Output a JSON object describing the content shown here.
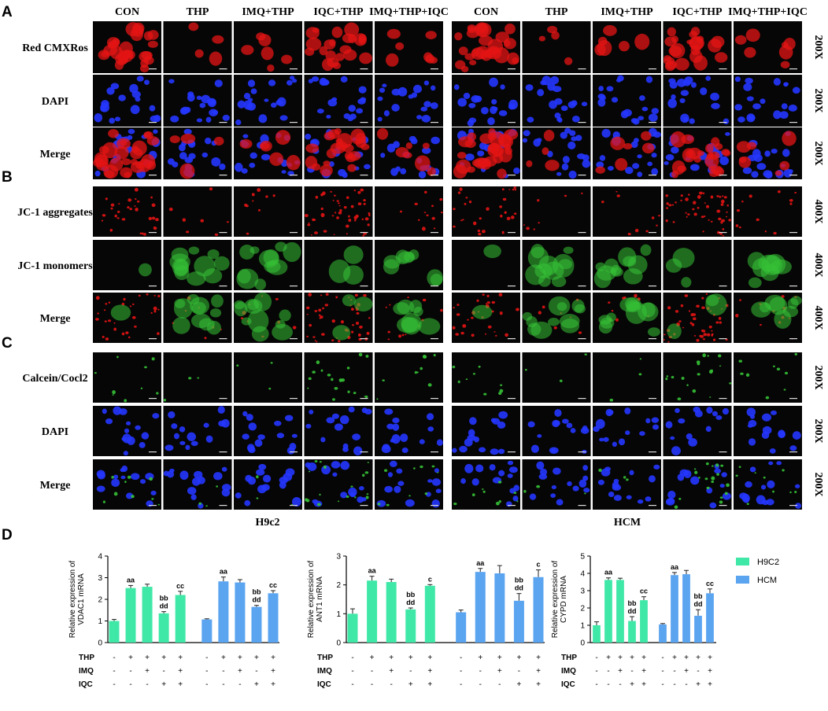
{
  "figure": {
    "panels": [
      {
        "label": "A",
        "rows": [
          {
            "label": "Red CMXRos",
            "magnification": "200X"
          },
          {
            "label": "DAPI",
            "magnification": "200X"
          },
          {
            "label": "Merge",
            "magnification": "200X"
          }
        ]
      },
      {
        "label": "B",
        "rows": [
          {
            "label": "JC-1 aggregates",
            "magnification": "400X"
          },
          {
            "label": "JC-1 monomers",
            "magnification": "400X"
          },
          {
            "label": "Merge",
            "magnification": "400X"
          }
        ]
      },
      {
        "label": "C",
        "rows": [
          {
            "label": "Calcein/Cocl2",
            "magnification": "200X"
          },
          {
            "label": "DAPI",
            "magnification": "200X"
          },
          {
            "label": "Merge",
            "magnification": "200X"
          }
        ]
      }
    ],
    "groups": [
      {
        "name": "H9c2",
        "columns": [
          "CON",
          "THP",
          "IMQ+THP",
          "IQC+THP",
          "IMQ+THP+IQC"
        ]
      },
      {
        "name": "HCM",
        "columns": [
          "CON",
          "THP",
          "IMQ+THP",
          "IQC+THP",
          "IMQ+THP+IQC"
        ]
      }
    ],
    "chart_panel_label": "D"
  },
  "chart_data": [
    {
      "type": "bar",
      "ylabel": [
        "Relative expression of",
        "VDAC1 mRNA"
      ],
      "ylim": [
        0,
        4
      ],
      "yticks": [
        0,
        1,
        2,
        3,
        4
      ],
      "series": [
        {
          "name": "H9C2",
          "color": "#40e8a8",
          "values": [
            1.0,
            2.52,
            2.58,
            1.35,
            2.2
          ],
          "errors": [
            0.07,
            0.12,
            0.12,
            0.08,
            0.17
          ],
          "labels": [
            null,
            [
              "aa"
            ],
            null,
            [
              "bb",
              "dd"
            ],
            [
              "cc"
            ]
          ]
        },
        {
          "name": "HCM",
          "color": "#5aa4f0",
          "values": [
            1.07,
            2.83,
            2.78,
            1.65,
            2.28
          ],
          "errors": [
            0.03,
            0.2,
            0.13,
            0.07,
            0.12
          ],
          "labels": [
            null,
            [
              "aa"
            ],
            null,
            [
              "bb",
              "dd"
            ],
            [
              "cc"
            ]
          ]
        }
      ],
      "conditions": [
        {
          "name": "THP",
          "signs": [
            "-",
            "+",
            "+",
            "+",
            "+",
            "-",
            "+",
            "+",
            "+",
            "+"
          ]
        },
        {
          "name": "IMQ",
          "signs": [
            "-",
            "-",
            "+",
            "-",
            "+",
            "-",
            "-",
            "+",
            "-",
            "+"
          ]
        },
        {
          "name": "IQC",
          "signs": [
            "-",
            "-",
            "-",
            "+",
            "+",
            "-",
            "-",
            "-",
            "+",
            "+"
          ]
        }
      ]
    },
    {
      "type": "bar",
      "ylabel": [
        "Relative expression of",
        "ANT1 mRNA"
      ],
      "ylim": [
        0,
        3
      ],
      "yticks": [
        0,
        1,
        2,
        3
      ],
      "series": [
        {
          "name": "H9C2",
          "color": "#40e8a8",
          "values": [
            1.0,
            2.15,
            2.1,
            1.15,
            1.97
          ],
          "errors": [
            0.17,
            0.15,
            0.1,
            0.05,
            0.04
          ],
          "labels": [
            null,
            [
              "aa"
            ],
            null,
            [
              "bb",
              "dd"
            ],
            [
              "c"
            ]
          ]
        },
        {
          "name": "HCM",
          "color": "#5aa4f0",
          "values": [
            1.05,
            2.45,
            2.4,
            1.45,
            2.27
          ],
          "errors": [
            0.08,
            0.12,
            0.27,
            0.25,
            0.25
          ],
          "labels": [
            null,
            [
              "aa"
            ],
            null,
            [
              "bb",
              "dd"
            ],
            [
              "c"
            ]
          ]
        }
      ],
      "conditions": [
        {
          "name": "THP",
          "signs": [
            "-",
            "+",
            "+",
            "+",
            "+",
            "-",
            "+",
            "+",
            "+",
            "+"
          ]
        },
        {
          "name": "IMQ",
          "signs": [
            "-",
            "-",
            "+",
            "-",
            "+",
            "-",
            "-",
            "+",
            "-",
            "+"
          ]
        },
        {
          "name": "IQC",
          "signs": [
            "-",
            "-",
            "-",
            "+",
            "+",
            "-",
            "-",
            "-",
            "+",
            "+"
          ]
        }
      ]
    },
    {
      "type": "bar",
      "ylabel": [
        "Relative expression of",
        "CYPD mRNA"
      ],
      "ylim": [
        0,
        5
      ],
      "yticks": [
        0,
        1,
        2,
        3,
        4,
        5
      ],
      "legend": "right",
      "series": [
        {
          "name": "H9C2",
          "color": "#40e8a8",
          "values": [
            1.0,
            3.62,
            3.62,
            1.25,
            2.45
          ],
          "errors": [
            0.2,
            0.12,
            0.1,
            0.25,
            0.2
          ],
          "labels": [
            null,
            [
              "aa"
            ],
            null,
            [
              "bb",
              "dd"
            ],
            [
              "cc"
            ]
          ]
        },
        {
          "name": "HCM",
          "color": "#5aa4f0",
          "values": [
            1.05,
            3.9,
            3.95,
            1.55,
            2.85
          ],
          "errors": [
            0.05,
            0.15,
            0.22,
            0.35,
            0.25
          ],
          "labels": [
            null,
            [
              "aa"
            ],
            null,
            [
              "bb",
              "dd"
            ],
            [
              "cc"
            ]
          ]
        }
      ],
      "conditions": [
        {
          "name": "THP",
          "signs": [
            "-",
            "+",
            "+",
            "+",
            "+",
            "-",
            "+",
            "+",
            "+",
            "+"
          ]
        },
        {
          "name": "IMQ",
          "signs": [
            "-",
            "-",
            "+",
            "-",
            "+",
            "-",
            "-",
            "+",
            "-",
            "+"
          ]
        },
        {
          "name": "IQC",
          "signs": [
            "-",
            "-",
            "-",
            "+",
            "+",
            "-",
            "-",
            "-",
            "+",
            "+"
          ]
        }
      ]
    }
  ]
}
